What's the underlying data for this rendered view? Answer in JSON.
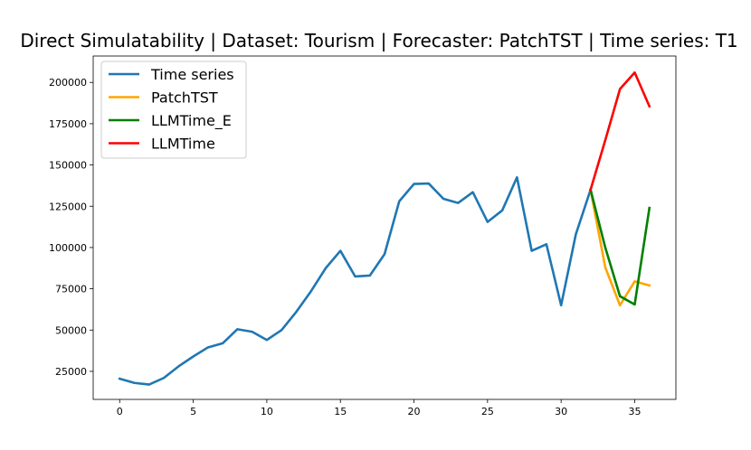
{
  "chart_data": {
    "type": "line",
    "title": "Direct Simulatability | Dataset: Tourism | Forecaster: PatchTST | Time series: T1",
    "xlabel": "",
    "ylabel": "",
    "xlim": [
      -1.8,
      37.8
    ],
    "ylim": [
      8000,
      216000
    ],
    "xticks": [
      0,
      5,
      10,
      15,
      20,
      25,
      30,
      35
    ],
    "yticks": [
      25000,
      50000,
      75000,
      100000,
      125000,
      150000,
      175000,
      200000
    ],
    "grid": false,
    "legend_position": "top-left",
    "series": [
      {
        "name": "Time series",
        "color": "#1f77b4",
        "x": [
          0,
          1,
          2,
          3,
          4,
          5,
          6,
          7,
          8,
          9,
          10,
          11,
          12,
          13,
          14,
          15,
          16,
          17,
          18,
          19,
          20,
          21,
          22,
          23,
          24,
          25,
          26,
          27,
          28,
          29,
          30,
          31,
          32
        ],
        "values": [
          20500,
          18000,
          17000,
          21000,
          28000,
          34000,
          39500,
          42000,
          50500,
          49000,
          44000,
          50000,
          61000,
          73500,
          87500,
          98000,
          82500,
          83000,
          96000,
          128000,
          138500,
          138800,
          129500,
          127000,
          133500,
          115500,
          122500,
          142500,
          98000,
          102000,
          65000,
          108000,
          135000
        ]
      },
      {
        "name": "PatchTST",
        "color": "#ffa500",
        "x": [
          32,
          33,
          34,
          35,
          36
        ],
        "values": [
          135000,
          88000,
          65000,
          79500,
          77000
        ]
      },
      {
        "name": "LLMTime_E",
        "color": "#008000",
        "x": [
          32,
          33,
          34,
          35,
          36
        ],
        "values": [
          135000,
          100000,
          70500,
          65500,
          124000
        ]
      },
      {
        "name": "LLMTime",
        "color": "#ff0000",
        "x": [
          32,
          33,
          34,
          35,
          36
        ],
        "values": [
          135000,
          165000,
          196000,
          206000,
          185500
        ]
      }
    ]
  }
}
